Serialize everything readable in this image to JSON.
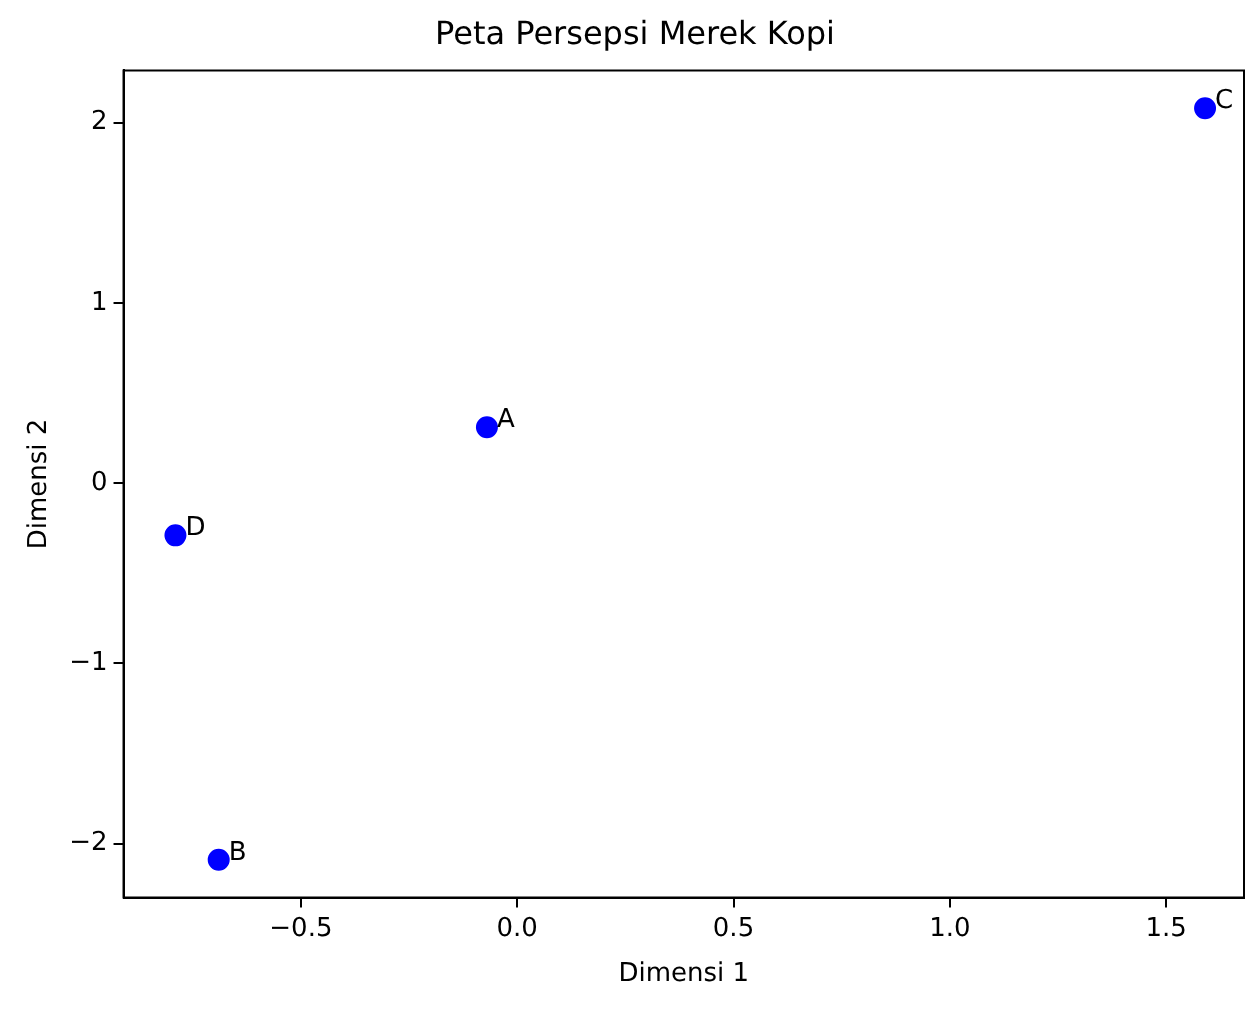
{
  "chart_data": {
    "type": "scatter",
    "title": "Peta Persepsi Merek Kopi",
    "xlabel": "Dimensi 1",
    "ylabel": "Dimensi 2",
    "x": [
      -0.07,
      -0.69,
      1.59,
      -0.79
    ],
    "series": [
      {
        "color": "#0000ff",
        "values": [
          0.31,
          -2.09,
          2.08,
          -0.29
        ]
      }
    ],
    "annotations": [
      {
        "text": "A",
        "x": -0.07,
        "y": 0.31
      },
      {
        "text": "B",
        "x": -0.69,
        "y": -2.09
      },
      {
        "text": "C",
        "x": 1.59,
        "y": 2.08
      },
      {
        "text": "D",
        "x": -0.79,
        "y": -0.29
      }
    ],
    "xlim": [
      -0.91,
      1.68
    ],
    "ylim": [
      -2.3,
      2.29
    ],
    "xticks": [
      {
        "value": -0.5,
        "label": "−0.5"
      },
      {
        "value": 0,
        "label": "0.0"
      },
      0.5,
      {
        "value": 1,
        "label": "1.0"
      },
      1.5
    ],
    "yticks": [
      {
        "value": -2,
        "label": "−2"
      },
      {
        "value": -1,
        "label": "−1"
      },
      0,
      1,
      2
    ],
    "grid": false,
    "legend": false,
    "marker": "circle"
  }
}
